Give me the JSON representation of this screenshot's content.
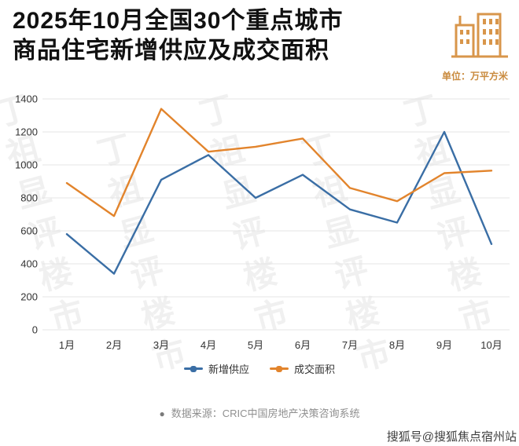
{
  "header": {
    "title_line1": "2025年10月全国30个重点城市",
    "title_line2": "商品住宅新增供应及成交面积",
    "unit_label": "单位：万平方米"
  },
  "chart_data": {
    "type": "line",
    "title": "2025年10月全国30个重点城市商品住宅新增供应及成交面积",
    "unit": "万平方米",
    "categories": [
      "1月",
      "2月",
      "3月",
      "4月",
      "5月",
      "6月",
      "7月",
      "8月",
      "9月",
      "10月"
    ],
    "series": [
      {
        "name": "新增供应",
        "color": "#3a6ea5",
        "values": [
          580,
          340,
          910,
          1060,
          800,
          940,
          730,
          650,
          1200,
          520
        ]
      },
      {
        "name": "成交面积",
        "color": "#e2842c",
        "values": [
          890,
          690,
          1340,
          1080,
          1110,
          1160,
          860,
          780,
          950,
          965
        ]
      }
    ],
    "xlabel": "",
    "ylabel": "",
    "ylim": [
      0,
      1400
    ],
    "yticks": [
      0,
      200,
      400,
      600,
      800,
      1000,
      1200,
      1400
    ],
    "grid": true,
    "legend_position": "bottom"
  },
  "footer": {
    "bullet": "●",
    "source": "数据来源：CRIC中国房地产决策咨询系统"
  },
  "watermark": {
    "background_text": "丁祖显评楼市",
    "bottom_right": "搜狐号@搜狐焦点宿州站"
  },
  "colors": {
    "accent_blue": "#3a6ea5",
    "accent_orange": "#e2842c",
    "icon_orange": "#d8964b",
    "unit_text": "#c98a3d"
  }
}
